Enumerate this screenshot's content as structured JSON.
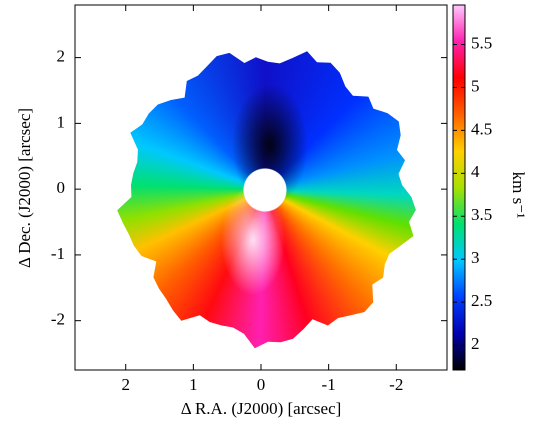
{
  "chart_data": {
    "type": "image",
    "xlabel": "Δ R.A. (J2000) [arcsec]",
    "ylabel": "Δ Dec. (J2000) [arcsec]",
    "xlim": [
      2.75,
      -2.75
    ],
    "xticks": [
      2,
      1,
      0,
      -1,
      -2
    ],
    "ylim": [
      -2.75,
      2.8
    ],
    "yticks": [
      -2,
      -1,
      0,
      1,
      2
    ],
    "colorbar": {
      "label": "km s⁻¹",
      "lim": [
        1.71,
        5.96
      ],
      "ticks": [
        2,
        2.5,
        3,
        3.5,
        4,
        4.5,
        5,
        5.5
      ],
      "colormap": [
        "#000000",
        "#0000b0",
        "#0040ff",
        "#00c8ff",
        "#00e070",
        "#a8e000",
        "#ffd000",
        "#ff6000",
        "#ff0000",
        "#ff20b0",
        "#ffc8ff"
      ]
    }
  }
}
